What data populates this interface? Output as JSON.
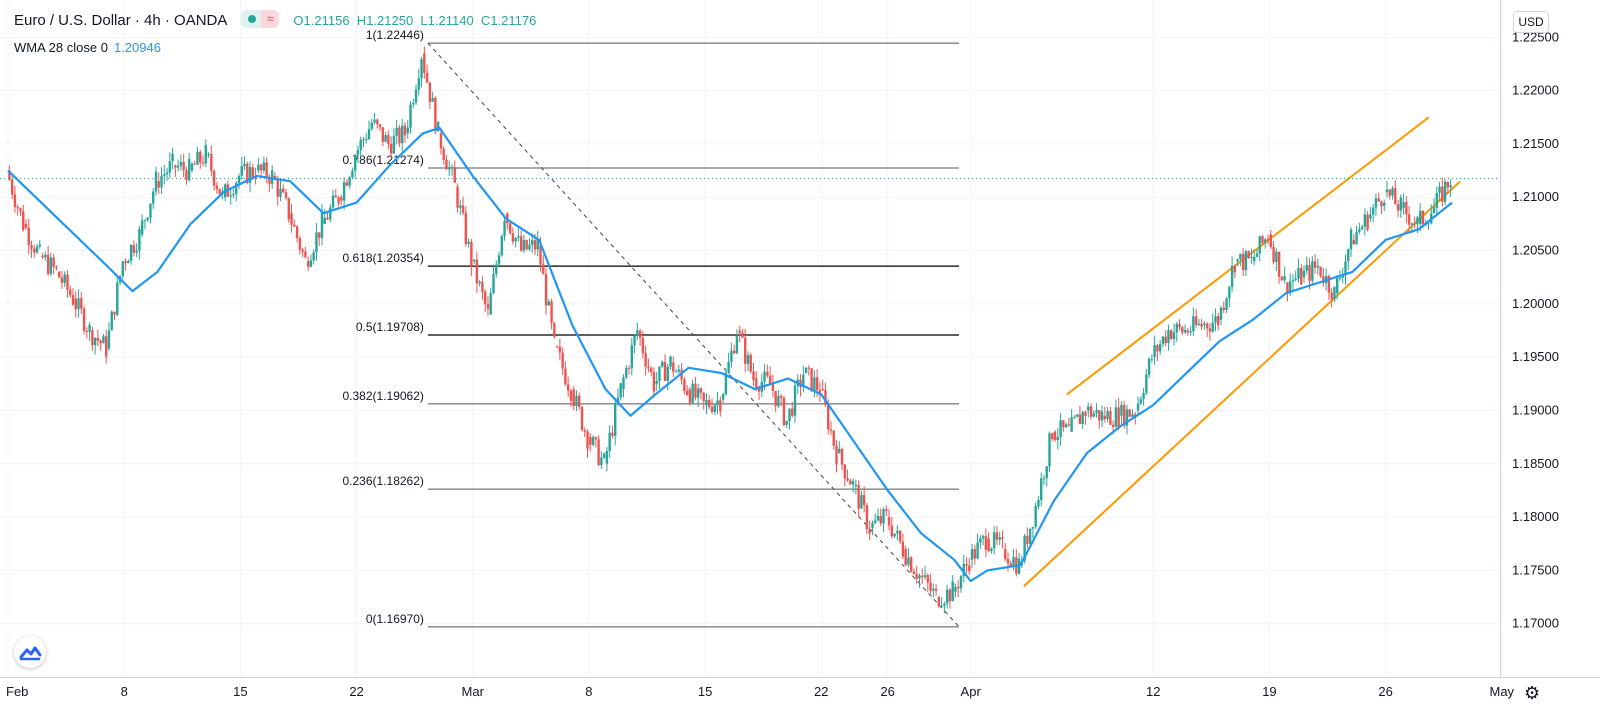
{
  "header": {
    "symbol": "Euro / U.S. Dollar · 4h · OANDA",
    "ohlc_labels": [
      "O",
      "H",
      "L",
      "C"
    ],
    "ohlc_values": [
      "1.21156",
      "1.21250",
      "1.21140",
      "1.21176"
    ]
  },
  "indicator": {
    "label": "WMA 28 close 0",
    "value": "1.20946"
  },
  "currency_button": "USD",
  "colors": {
    "up": "#26a69a",
    "down": "#ef5350",
    "wma": "#2196f3",
    "channel": "#ff9800",
    "fib": "#000000",
    "grid": "#f0f3fa"
  },
  "icons": [
    "tradingview-logo-icon",
    "gear-icon",
    "wave-icon"
  ],
  "chart_data": {
    "type": "candlestick",
    "timeframe": "4h",
    "y_ticks": [
      "1.22500",
      "1.22000",
      "1.21500",
      "1.21000",
      "1.20500",
      "1.20000",
      "1.19500",
      "1.19000",
      "1.18500",
      "1.18000",
      "1.17500",
      "1.17000"
    ],
    "ylim": [
      1.165,
      1.2285
    ],
    "x_ticks": [
      "Feb",
      "8",
      "15",
      "22",
      "Mar",
      "8",
      "15",
      "22",
      "26",
      "Apr",
      "12",
      "19",
      "26",
      "May"
    ],
    "x_tick_values": [
      0,
      7,
      14,
      21,
      28,
      35,
      42,
      49,
      53,
      58,
      69,
      76,
      83,
      90
    ],
    "xlim": [
      -0.5,
      87.5
    ],
    "last_price": 1.21176,
    "fibonacci": {
      "levels": [
        {
          "label": "1(1.22446)",
          "value": 1.22446
        },
        {
          "label": "0.786(1.21274)",
          "value": 1.21274
        },
        {
          "label": "0.618(1.20354)",
          "value": 1.20354
        },
        {
          "label": "0.5(1.19708)",
          "value": 1.19708
        },
        {
          "label": "0.382(1.19062)",
          "value": 1.19062
        },
        {
          "label": "0.236(1.18262)",
          "value": 1.18262
        },
        {
          "label": "0(1.16970)",
          "value": 1.1697
        }
      ],
      "from_x": 25.3,
      "to_x": 57.3
    },
    "channel": {
      "upper": {
        "x": [
          63.8,
          85.6
        ],
        "y": [
          1.1915,
          1.2175
        ]
      },
      "lower": {
        "x": [
          61.2,
          87.5
        ],
        "y": [
          1.1735,
          1.2115
        ]
      }
    },
    "close_path": [
      [
        0,
        1.2125
      ],
      [
        1,
        1.2075
      ],
      [
        2,
        1.2045
      ],
      [
        3,
        1.203
      ],
      [
        4,
        1.2005
      ],
      [
        5,
        1.1975
      ],
      [
        6,
        1.1958
      ],
      [
        7,
        1.204
      ],
      [
        8,
        1.2065
      ],
      [
        9,
        1.2115
      ],
      [
        10,
        1.213
      ],
      [
        11,
        1.2125
      ],
      [
        12,
        1.214
      ],
      [
        13,
        1.21
      ],
      [
        14,
        1.212
      ],
      [
        15,
        1.2125
      ],
      [
        16,
        1.212
      ],
      [
        17,
        1.2085
      ],
      [
        18,
        1.204
      ],
      [
        19,
        1.2075
      ],
      [
        20,
        1.21
      ],
      [
        21,
        1.214
      ],
      [
        22,
        1.217
      ],
      [
        23,
        1.215
      ],
      [
        24,
        1.216
      ],
      [
        25,
        1.2235
      ],
      [
        26,
        1.216
      ],
      [
        27,
        1.211
      ],
      [
        28,
        1.204
      ],
      [
        29,
        1.199
      ],
      [
        30,
        1.2085
      ],
      [
        31,
        1.205
      ],
      [
        32,
        1.2055
      ],
      [
        33,
        1.196
      ],
      [
        34,
        1.192
      ],
      [
        35,
        1.1875
      ],
      [
        36,
        1.185
      ],
      [
        37,
        1.192
      ],
      [
        38,
        1.1975
      ],
      [
        39,
        1.1925
      ],
      [
        40,
        1.1945
      ],
      [
        41,
        1.192
      ],
      [
        42,
        1.1905
      ],
      [
        43,
        1.191
      ],
      [
        44,
        1.1975
      ],
      [
        45,
        1.193
      ],
      [
        46,
        1.1925
      ],
      [
        47,
        1.189
      ],
      [
        48,
        1.1935
      ],
      [
        49,
        1.192
      ],
      [
        50,
        1.186
      ],
      [
        51,
        1.183
      ],
      [
        52,
        1.179
      ],
      [
        53,
        1.18
      ],
      [
        54,
        1.177
      ],
      [
        55,
        1.1745
      ],
      [
        56,
        1.1725
      ],
      [
        57,
        1.173
      ],
      [
        58,
        1.176
      ],
      [
        59,
        1.178
      ],
      [
        60,
        1.177
      ],
      [
        61,
        1.1755
      ],
      [
        62,
        1.181
      ],
      [
        63,
        1.188
      ],
      [
        64,
        1.188
      ],
      [
        65,
        1.19
      ],
      [
        66,
        1.1895
      ],
      [
        67,
        1.1895
      ],
      [
        68,
        1.19
      ],
      [
        69,
        1.195
      ],
      [
        70,
        1.1975
      ],
      [
        71,
        1.1975
      ],
      [
        72,
        1.198
      ],
      [
        73,
        1.1985
      ],
      [
        74,
        1.204
      ],
      [
        75,
        1.204
      ],
      [
        76,
        1.2065
      ],
      [
        77,
        1.202
      ],
      [
        78,
        1.2025
      ],
      [
        79,
        1.2035
      ],
      [
        80,
        1.201
      ],
      [
        81,
        1.206
      ],
      [
        82,
        1.208
      ],
      [
        83,
        1.2105
      ],
      [
        84,
        1.209
      ],
      [
        85,
        1.2075
      ],
      [
        86,
        1.209
      ],
      [
        87,
        1.2118
      ]
    ],
    "wma_28": [
      [
        0,
        1.2125
      ],
      [
        3,
        1.208
      ],
      [
        6,
        1.2035
      ],
      [
        7.5,
        1.2012
      ],
      [
        9,
        1.203
      ],
      [
        11,
        1.2075
      ],
      [
        13,
        1.2105
      ],
      [
        15,
        1.212
      ],
      [
        17,
        1.2115
      ],
      [
        19,
        1.2085
      ],
      [
        21,
        1.2095
      ],
      [
        23,
        1.213
      ],
      [
        25,
        1.216
      ],
      [
        26,
        1.2165
      ],
      [
        28,
        1.212
      ],
      [
        30,
        1.208
      ],
      [
        32,
        1.206
      ],
      [
        34,
        1.198
      ],
      [
        36,
        1.192
      ],
      [
        37.5,
        1.1895
      ],
      [
        39,
        1.1915
      ],
      [
        41,
        1.194
      ],
      [
        43,
        1.1935
      ],
      [
        45,
        1.192
      ],
      [
        47,
        1.193
      ],
      [
        49,
        1.1915
      ],
      [
        51,
        1.187
      ],
      [
        53,
        1.1825
      ],
      [
        55,
        1.1785
      ],
      [
        57,
        1.176
      ],
      [
        58,
        1.174
      ],
      [
        59,
        1.175
      ],
      [
        61,
        1.1755
      ],
      [
        63,
        1.1815
      ],
      [
        65,
        1.186
      ],
      [
        67,
        1.1885
      ],
      [
        69,
        1.1905
      ],
      [
        71,
        1.1935
      ],
      [
        73,
        1.1965
      ],
      [
        75,
        1.1985
      ],
      [
        77,
        1.201
      ],
      [
        79,
        1.202
      ],
      [
        81,
        1.203
      ],
      [
        83,
        1.206
      ],
      [
        85,
        1.207
      ],
      [
        87,
        1.2095
      ]
    ]
  }
}
